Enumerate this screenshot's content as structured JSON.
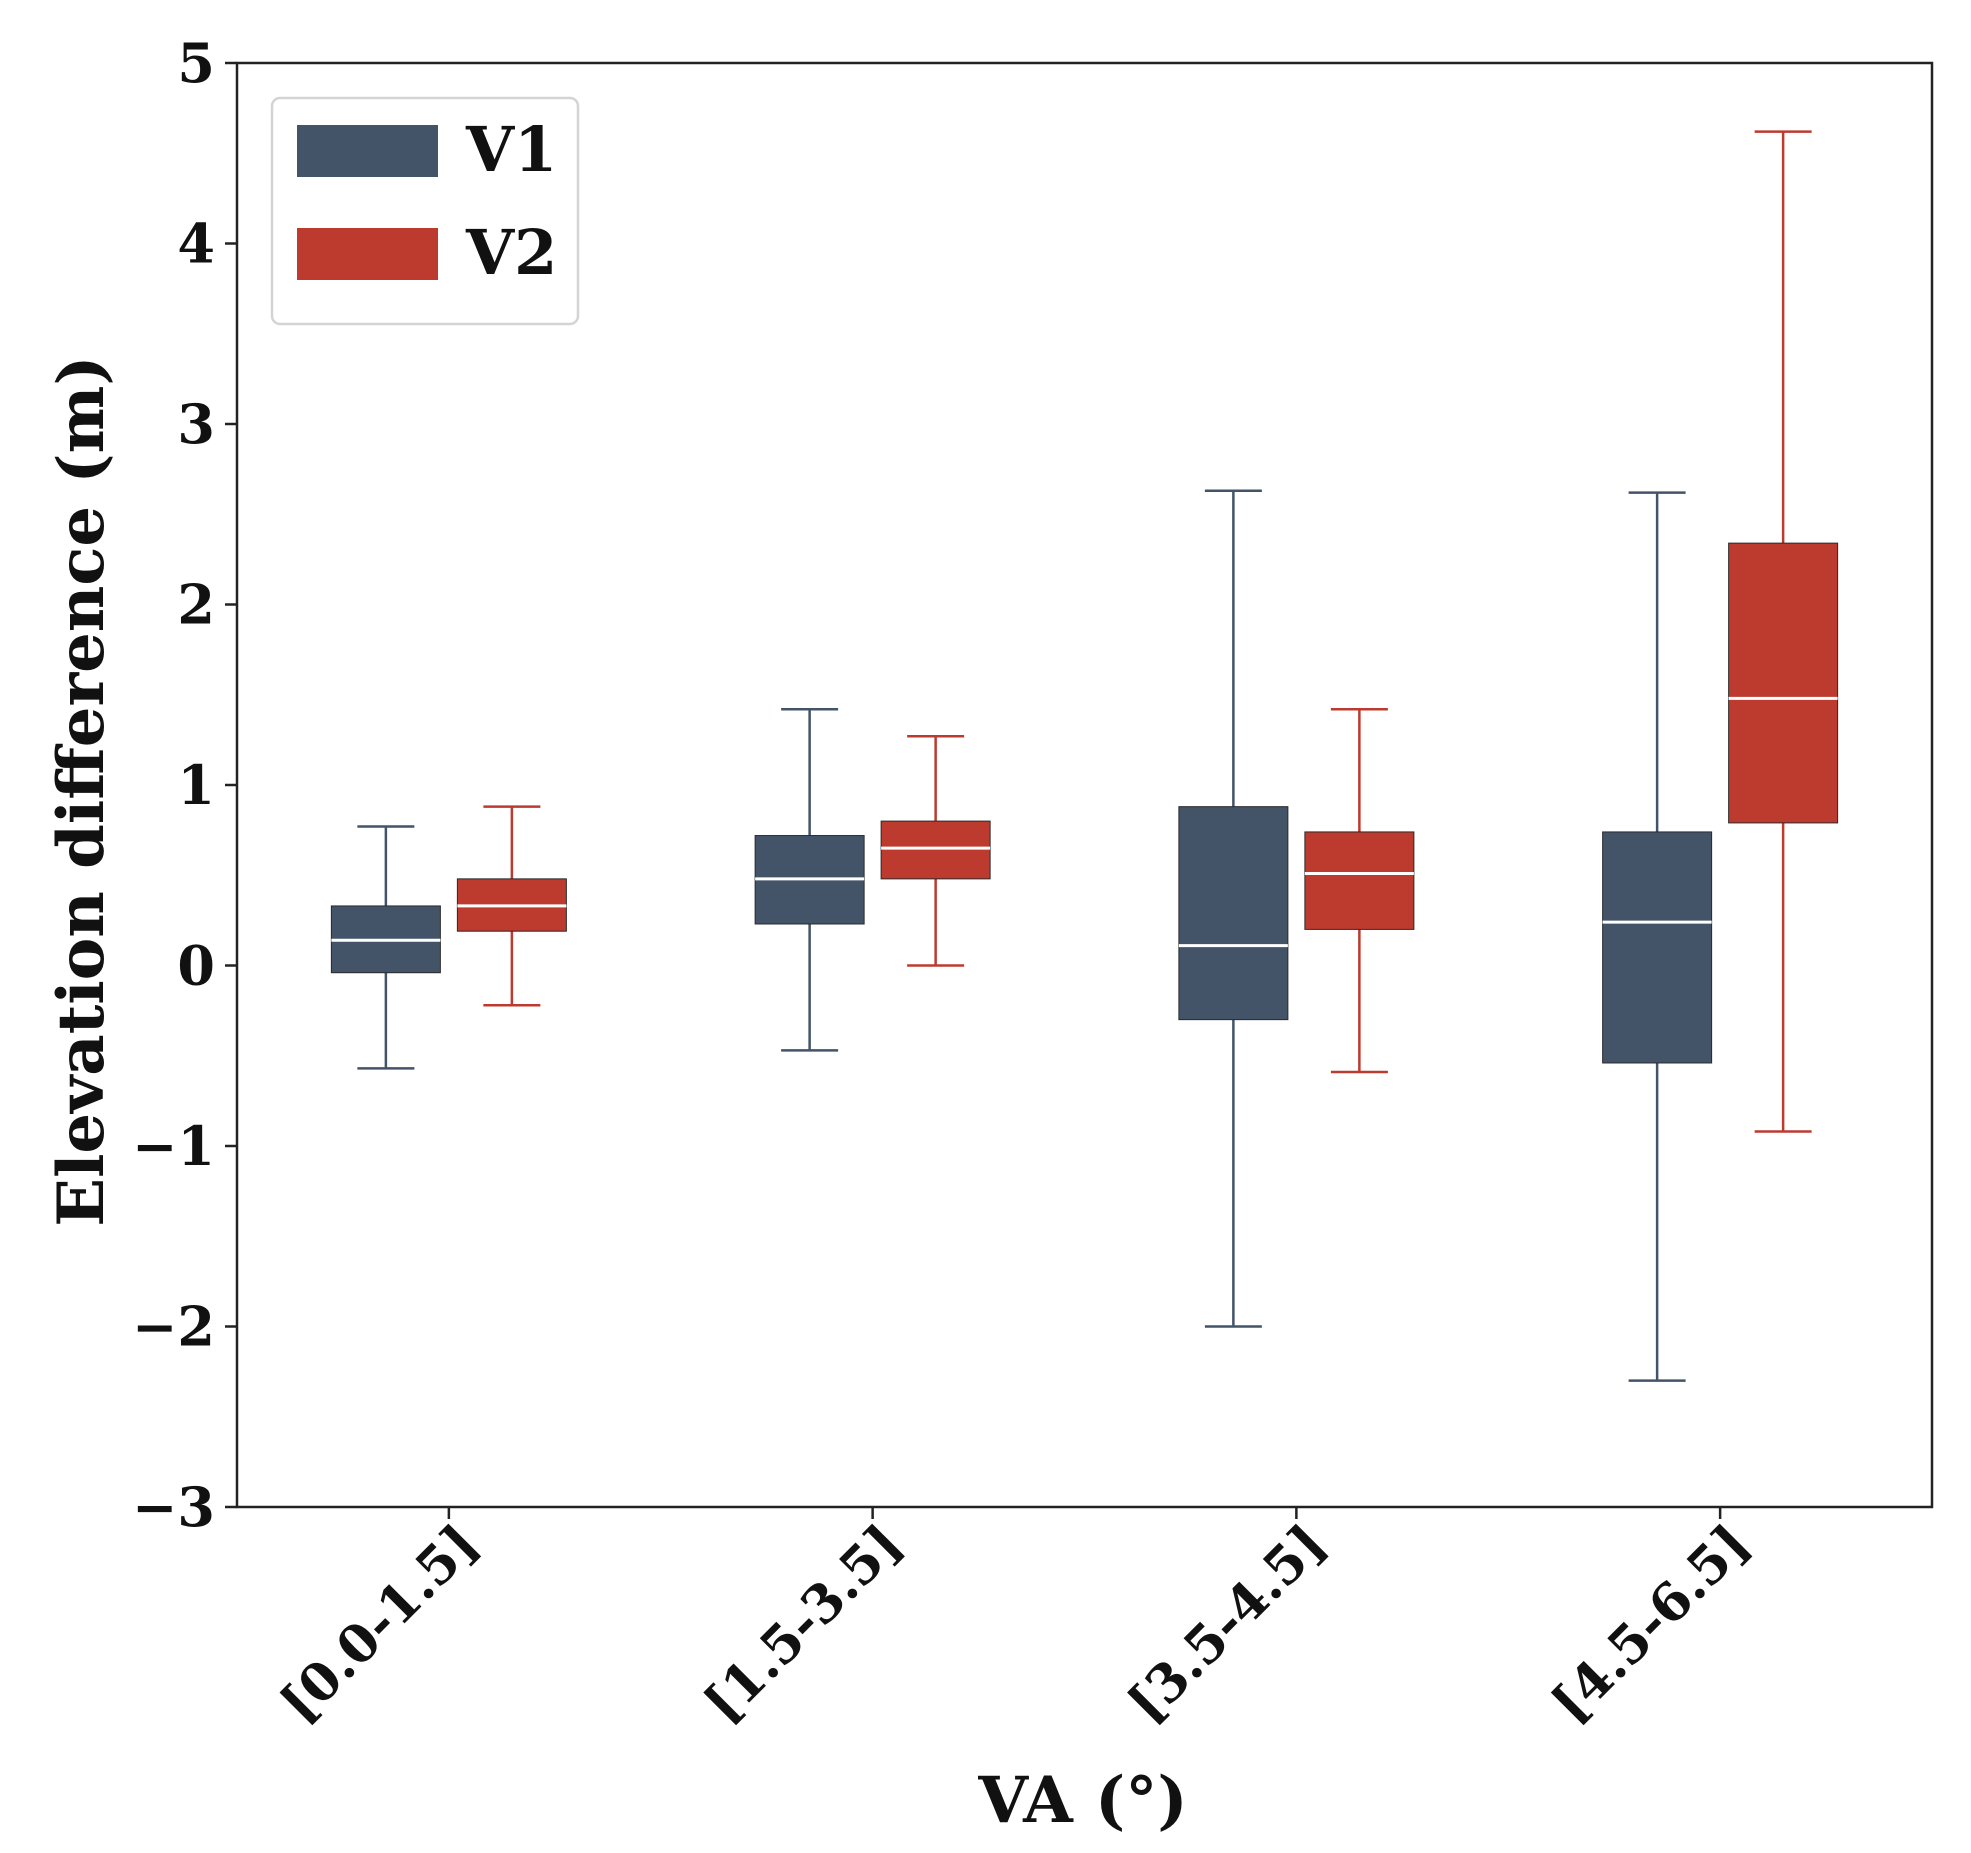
{
  "chart_data": {
    "type": "boxplot",
    "title": "",
    "xlabel": "VA (°)",
    "ylabel": "Elevation difference (m)",
    "ylim": [
      -3,
      5
    ],
    "yticks": [
      -3,
      -2,
      -1,
      0,
      1,
      2,
      3,
      4,
      5
    ],
    "ytick_labels": [
      "−3",
      "−2",
      "−1",
      "0",
      "1",
      "2",
      "3",
      "4",
      "5"
    ],
    "categories": [
      "[0.0-1.5]",
      "[1.5-3.5]",
      "[3.5-4.5]",
      "[4.5-6.5]"
    ],
    "grid": false,
    "legend_position": "top-left",
    "series": [
      {
        "name": "V1",
        "color": "#435469",
        "boxes": [
          {
            "whisker_low": -0.57,
            "q1": -0.04,
            "median": 0.14,
            "q3": 0.33,
            "whisker_high": 0.77
          },
          {
            "whisker_low": -0.47,
            "q1": 0.23,
            "median": 0.48,
            "q3": 0.72,
            "whisker_high": 1.42
          },
          {
            "whisker_low": -2.0,
            "q1": -0.3,
            "median": 0.11,
            "q3": 0.88,
            "whisker_high": 2.63
          },
          {
            "whisker_low": -2.3,
            "q1": -0.54,
            "median": 0.24,
            "q3": 0.74,
            "whisker_high": 2.62
          }
        ]
      },
      {
        "name": "V2",
        "color": "#bd3a2f",
        "boxes": [
          {
            "whisker_low": -0.22,
            "q1": 0.19,
            "median": 0.33,
            "q3": 0.48,
            "whisker_high": 0.88
          },
          {
            "whisker_low": 0.0,
            "q1": 0.48,
            "median": 0.65,
            "q3": 0.8,
            "whisker_high": 1.27
          },
          {
            "whisker_low": -0.59,
            "q1": 0.2,
            "median": 0.51,
            "q3": 0.74,
            "whisker_high": 1.42
          },
          {
            "whisker_low": -0.92,
            "q1": 0.79,
            "median": 1.48,
            "q3": 2.34,
            "whisker_high": 4.62
          }
        ]
      }
    ]
  }
}
